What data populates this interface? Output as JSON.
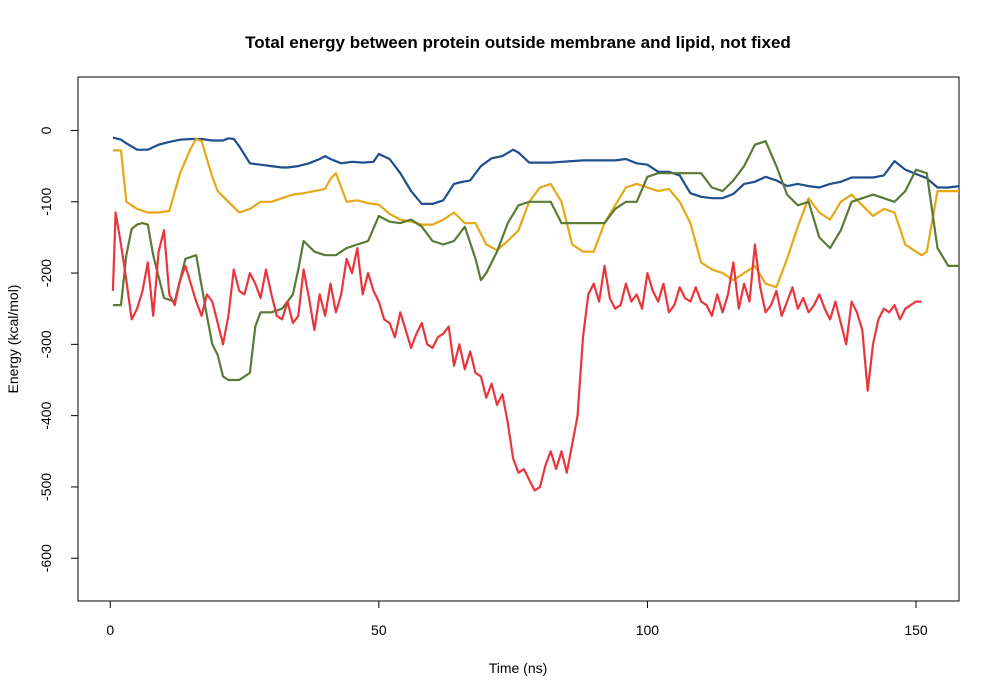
{
  "chart_data": {
    "type": "line",
    "title": "Total energy between protein outside membrane and lipid, not fixed",
    "xlabel": "Time (ns)",
    "ylabel": "Energy (kcal/mol)",
    "xlim": [
      -6,
      158
    ],
    "ylim": [
      -660,
      75
    ],
    "xticks": [
      0,
      50,
      100,
      150
    ],
    "yticks": [
      0,
      -100,
      -200,
      -300,
      -400,
      -500,
      -600
    ],
    "legend": "none",
    "grid": false,
    "series": [
      {
        "color": "#1F4E8C",
        "x": [
          0.5,
          2,
          3,
          5,
          7,
          9,
          11,
          13,
          15,
          17,
          19,
          21,
          22,
          23,
          24,
          26,
          28,
          30,
          32,
          33,
          35,
          37,
          39,
          40,
          41,
          43,
          45,
          47,
          49,
          50,
          52,
          54,
          56,
          58,
          60,
          62,
          64,
          65,
          67,
          69,
          71,
          73,
          75,
          76,
          78,
          80,
          82,
          84,
          86,
          88,
          90,
          92,
          94,
          96,
          98,
          100,
          102,
          104,
          106,
          108,
          110,
          112,
          114,
          116,
          118,
          120,
          122,
          124,
          126,
          128,
          130,
          132,
          134,
          136,
          138,
          140,
          142,
          144,
          146,
          148,
          150,
          152,
          154,
          156,
          158
        ],
        "y": [
          -10,
          -13,
          -18,
          -27,
          -27,
          -20,
          -16,
          -13,
          -12,
          -12,
          -14,
          -14,
          -11,
          -12,
          -22,
          -46,
          -48,
          -50,
          -52,
          -52,
          -50,
          -46,
          -40,
          -36,
          -40,
          -46,
          -44,
          -45,
          -44,
          -33,
          -40,
          -60,
          -85,
          -103,
          -103,
          -98,
          -75,
          -73,
          -70,
          -50,
          -39,
          -36,
          -27,
          -31,
          -45,
          -45,
          -45,
          -44,
          -43,
          -42,
          -42,
          -42,
          -42,
          -40,
          -46,
          -48,
          -58,
          -58,
          -63,
          -88,
          -93,
          -95,
          -95,
          -89,
          -75,
          -72,
          -65,
          -70,
          -78,
          -75,
          -78,
          -80,
          -75,
          -72,
          -66,
          -66,
          -66,
          -63,
          -43,
          -55,
          -61,
          -67,
          -80,
          -80,
          -78
        ]
      },
      {
        "color": "#E6A817",
        "x": [
          0.5,
          2,
          3,
          5,
          7,
          9,
          11,
          13,
          15,
          16,
          17,
          18,
          19,
          20,
          22,
          24,
          26,
          28,
          30,
          32,
          34,
          36,
          38,
          40,
          41,
          42,
          44,
          46,
          48,
          50,
          52,
          54,
          56,
          58,
          60,
          62,
          64,
          66,
          68,
          70,
          72,
          74,
          76,
          78,
          80,
          82,
          84,
          86,
          88,
          90,
          92,
          94,
          96,
          98,
          100,
          102,
          104,
          106,
          108,
          110,
          112,
          114,
          116,
          118,
          120,
          122,
          124,
          126,
          128,
          130,
          132,
          134,
          136,
          138,
          140,
          142,
          144,
          146,
          148,
          150,
          151,
          152,
          154,
          156,
          158
        ],
        "y": [
          -28,
          -28,
          -100,
          -110,
          -115,
          -115,
          -113,
          -60,
          -25,
          -12,
          -15,
          -40,
          -65,
          -85,
          -100,
          -115,
          -110,
          -100,
          -100,
          -95,
          -90,
          -88,
          -85,
          -82,
          -68,
          -60,
          -100,
          -98,
          -102,
          -104,
          -117,
          -125,
          -128,
          -132,
          -132,
          -125,
          -115,
          -130,
          -130,
          -160,
          -168,
          -155,
          -140,
          -100,
          -80,
          -75,
          -100,
          -160,
          -170,
          -170,
          -130,
          -105,
          -80,
          -75,
          -80,
          -85,
          -82,
          -100,
          -130,
          -185,
          -195,
          -200,
          -210,
          -200,
          -190,
          -215,
          -220,
          -180,
          -135,
          -95,
          -115,
          -125,
          -100,
          -90,
          -105,
          -120,
          -110,
          -115,
          -160,
          -170,
          -175,
          -170,
          -85,
          -85,
          -85
        ]
      },
      {
        "color": "#5A7A35",
        "x": [
          0.5,
          1,
          2,
          3,
          4,
          5,
          6,
          7,
          8,
          9,
          10,
          12,
          14,
          16,
          18,
          19,
          20,
          21,
          22,
          24,
          26,
          27,
          28,
          30,
          32,
          34,
          35,
          36,
          38,
          40,
          42,
          44,
          46,
          48,
          50,
          52,
          54,
          56,
          58,
          60,
          62,
          64,
          66,
          68,
          69,
          70,
          72,
          74,
          76,
          78,
          80,
          82,
          84,
          86,
          88,
          90,
          92,
          94,
          96,
          98,
          100,
          102,
          104,
          106,
          108,
          110,
          112,
          114,
          116,
          118,
          120,
          122,
          124,
          126,
          128,
          130,
          132,
          134,
          136,
          138,
          140,
          142,
          144,
          146,
          148,
          150,
          152,
          154,
          156,
          158
        ],
        "y": [
          -245,
          -245,
          -245,
          -175,
          -138,
          -132,
          -130,
          -132,
          -175,
          -205,
          -235,
          -240,
          -180,
          -175,
          -260,
          -300,
          -315,
          -345,
          -350,
          -350,
          -340,
          -275,
          -255,
          -255,
          -250,
          -230,
          -195,
          -155,
          -170,
          -175,
          -175,
          -165,
          -160,
          -155,
          -120,
          -128,
          -130,
          -125,
          -135,
          -155,
          -160,
          -155,
          -135,
          -180,
          -210,
          -200,
          -170,
          -130,
          -105,
          -100,
          -100,
          -100,
          -130,
          -130,
          -130,
          -130,
          -130,
          -110,
          -100,
          -100,
          -65,
          -60,
          -60,
          -60,
          -60,
          -60,
          -80,
          -85,
          -70,
          -50,
          -20,
          -15,
          -50,
          -90,
          -105,
          -100,
          -150,
          -165,
          -140,
          -100,
          -95,
          -90,
          -95,
          -100,
          -85,
          -55,
          -60,
          -165,
          -190,
          -190
        ]
      },
      {
        "color": "#E8363C",
        "x": [
          0.5,
          1,
          2,
          3,
          4,
          5,
          6,
          7,
          8,
          9,
          10,
          11,
          12,
          13,
          14,
          15,
          16,
          17,
          18,
          19,
          20,
          21,
          22,
          23,
          24,
          25,
          26,
          27,
          28,
          29,
          30,
          31,
          32,
          33,
          34,
          35,
          36,
          37,
          38,
          39,
          40,
          41,
          42,
          43,
          44,
          45,
          46,
          47,
          48,
          49,
          50,
          51,
          52,
          53,
          54,
          55,
          56,
          57,
          58,
          59,
          60,
          61,
          62,
          63,
          64,
          65,
          66,
          67,
          68,
          69,
          70,
          71,
          72,
          73,
          74,
          75,
          76,
          77,
          78,
          79,
          80,
          81,
          82,
          83,
          84,
          85,
          86,
          87,
          88,
          89,
          90,
          91,
          92,
          93,
          94,
          95,
          96,
          97,
          98,
          99,
          100,
          101,
          102,
          103,
          104,
          105,
          106,
          107,
          108,
          109,
          110,
          111,
          112,
          113,
          114,
          115,
          116,
          117,
          118,
          119,
          120,
          121,
          122,
          123,
          124,
          125,
          126,
          127,
          128,
          129,
          130,
          131,
          132,
          133,
          134,
          135,
          136,
          137,
          138,
          139,
          140,
          141,
          142,
          143,
          144,
          145,
          146,
          147,
          148,
          149,
          150,
          151
        ],
        "y": [
          -225,
          -115,
          -160,
          -210,
          -265,
          -250,
          -225,
          -185,
          -260,
          -170,
          -140,
          -230,
          -245,
          -210,
          -190,
          -215,
          -240,
          -260,
          -230,
          -240,
          -270,
          -300,
          -260,
          -195,
          -225,
          -230,
          -200,
          -215,
          -235,
          -195,
          -230,
          -260,
          -265,
          -240,
          -270,
          -260,
          -195,
          -235,
          -280,
          -230,
          -260,
          -215,
          -255,
          -230,
          -180,
          -200,
          -165,
          -230,
          -200,
          -225,
          -240,
          -265,
          -270,
          -290,
          -255,
          -280,
          -305,
          -285,
          -270,
          -300,
          -305,
          -290,
          -285,
          -275,
          -330,
          -300,
          -335,
          -310,
          -340,
          -345,
          -375,
          -355,
          -385,
          -370,
          -410,
          -460,
          -480,
          -475,
          -490,
          -505,
          -500,
          -470,
          -450,
          -475,
          -450,
          -480,
          -440,
          -400,
          -290,
          -230,
          -215,
          -240,
          -190,
          -235,
          -250,
          -245,
          -215,
          -240,
          -230,
          -250,
          -200,
          -225,
          -240,
          -215,
          -255,
          -245,
          -220,
          -235,
          -240,
          -220,
          -240,
          -245,
          -260,
          -230,
          -255,
          -230,
          -185,
          -250,
          -215,
          -240,
          -160,
          -220,
          -255,
          -245,
          -225,
          -260,
          -240,
          -220,
          -250,
          -235,
          -255,
          -245,
          -230,
          -250,
          -265,
          -240,
          -270,
          -300,
          -240,
          -255,
          -280,
          -365,
          -300,
          -265,
          -250,
          -255,
          -245,
          -265,
          -250,
          -245,
          -240,
          -240
        ]
      }
    ]
  }
}
